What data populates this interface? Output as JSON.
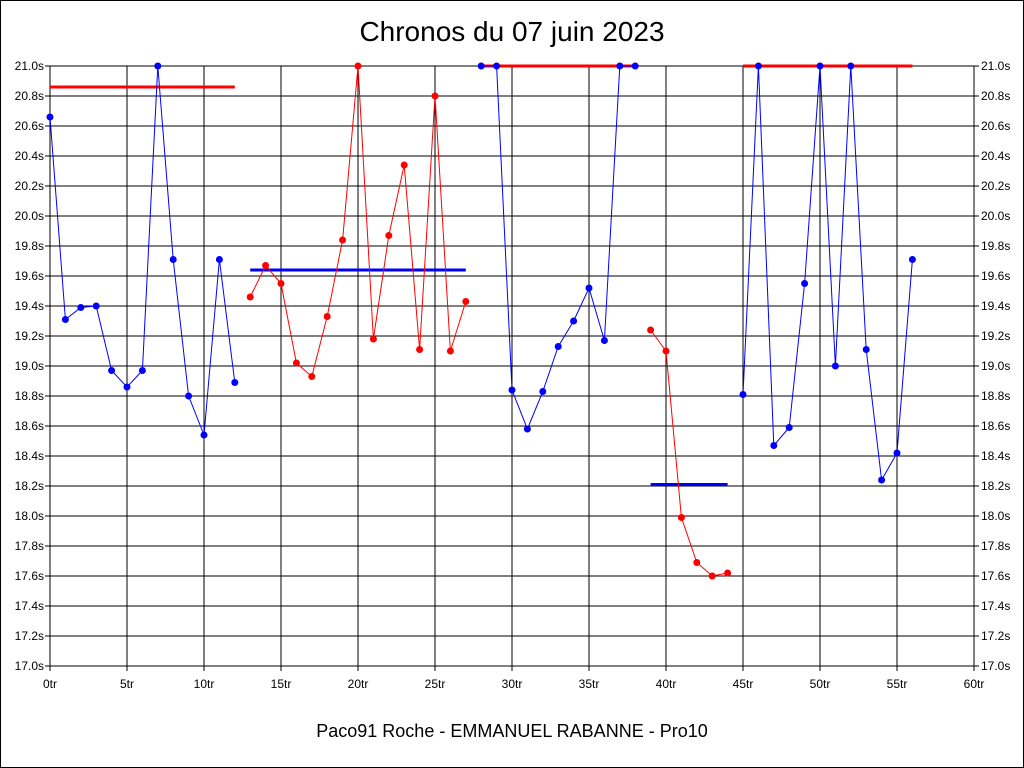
{
  "chart_data": {
    "type": "line",
    "title": "Chronos du 07 juin 2023",
    "footer": "Paco91 Roche - EMMANUEL RABANNE - Pro10",
    "xlabel": "",
    "ylabel": "",
    "xlim": [
      0,
      60
    ],
    "ylim": [
      17.0,
      21.0
    ],
    "grid": true,
    "legend": "none",
    "x_ticks": [
      "0tr",
      "5tr",
      "10tr",
      "15tr",
      "20tr",
      "25tr",
      "30tr",
      "35tr",
      "40tr",
      "45tr",
      "50tr",
      "55tr",
      "60tr"
    ],
    "y_ticks": [
      "17.0s",
      "17.2s",
      "17.4s",
      "17.6s",
      "17.8s",
      "18.0s",
      "18.2s",
      "18.4s",
      "18.6s",
      "18.8s",
      "19.0s",
      "19.2s",
      "19.4s",
      "19.6s",
      "19.8s",
      "20.0s",
      "20.2s",
      "20.4s",
      "20.6s",
      "20.8s",
      "21.0s"
    ],
    "series": [
      {
        "color": "#0000ff",
        "x": [
          0,
          1,
          2,
          3,
          4,
          5,
          6,
          7,
          8,
          9,
          10,
          11,
          12
        ],
        "y": [
          20.66,
          19.31,
          19.39,
          19.4,
          18.97,
          18.86,
          18.97,
          21.0,
          19.71,
          18.8,
          18.54,
          19.71,
          18.89
        ]
      },
      {
        "color": "#ff0000",
        "x": [
          13,
          14,
          15,
          16,
          17,
          18,
          19,
          20,
          21,
          22,
          23,
          24,
          25,
          26,
          27
        ],
        "y": [
          19.46,
          19.67,
          19.55,
          19.02,
          18.93,
          19.33,
          19.84,
          21.0,
          19.18,
          19.87,
          20.34,
          19.11,
          20.8,
          19.1,
          19.43
        ]
      },
      {
        "color": "#0000ff",
        "x": [
          28,
          29,
          30,
          31,
          32,
          33,
          34,
          35,
          36,
          37,
          38
        ],
        "y": [
          21.0,
          21.0,
          18.84,
          18.58,
          18.83,
          19.13,
          19.3,
          19.52,
          19.17,
          21.0,
          21.0
        ]
      },
      {
        "color": "#ff0000",
        "x": [
          39,
          40,
          41,
          42,
          43,
          44
        ],
        "y": [
          19.24,
          19.1,
          17.99,
          17.69,
          17.6,
          17.62
        ]
      },
      {
        "color": "#0000ff",
        "x": [
          45,
          46,
          47,
          48,
          49,
          50,
          51,
          52,
          53,
          54,
          55,
          56
        ],
        "y": [
          18.81,
          21.0,
          18.47,
          18.59,
          19.55,
          21.0,
          19.0,
          21.0,
          19.11,
          18.24,
          18.42,
          19.71
        ]
      }
    ],
    "average_lines": [
      {
        "color": "#ff0000",
        "x_start": 0,
        "x_end": 12,
        "y": 20.86
      },
      {
        "color": "#0000ff",
        "x_start": 13,
        "x_end": 27,
        "y": 19.64
      },
      {
        "color": "#ff0000",
        "x_start": 28,
        "x_end": 38,
        "y": 21.0
      },
      {
        "color": "#0000ff",
        "x_start": 39,
        "x_end": 44,
        "y": 18.21
      },
      {
        "color": "#ff0000",
        "x_start": 45,
        "x_end": 56,
        "y": 21.0
      }
    ]
  }
}
